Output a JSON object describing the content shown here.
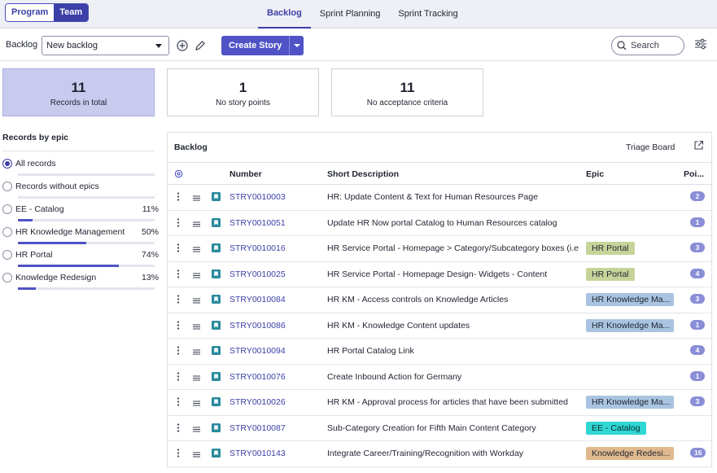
{
  "mode_toggle": {
    "program": "Program",
    "team": "Team"
  },
  "tabs": [
    {
      "label": "Backlog",
      "active": true
    },
    {
      "label": "Sprint Planning",
      "active": false
    },
    {
      "label": "Sprint Tracking",
      "active": false
    }
  ],
  "toolbar": {
    "backlog_label": "Backlog",
    "backlog_select": "New backlog",
    "create_label": "Create Story",
    "search_placeholder": "Search"
  },
  "stats": [
    {
      "value": "11",
      "label": "Records in total"
    },
    {
      "value": "1",
      "label": "No story points"
    },
    {
      "value": "11",
      "label": "No acceptance criteria"
    }
  ],
  "epic_filter": {
    "title": "Records by epic",
    "items": [
      {
        "name": "All records",
        "pct": "",
        "fill": 0,
        "checked": true
      },
      {
        "name": "Records without epics",
        "pct": "",
        "fill": 0,
        "checked": false
      },
      {
        "name": "EE - Catalog",
        "pct": "11%",
        "fill": 0.11,
        "checked": false
      },
      {
        "name": "HR Knowledge Management",
        "pct": "50%",
        "fill": 0.5,
        "checked": false
      },
      {
        "name": "HR Portal",
        "pct": "74%",
        "fill": 0.74,
        "checked": false
      },
      {
        "name": "Knowledge Redesign",
        "pct": "13%",
        "fill": 0.13,
        "checked": false
      }
    ]
  },
  "backlog": {
    "title": "Backlog",
    "triage": "Triage Board",
    "columns": {
      "number": "Number",
      "desc": "Short Description",
      "epic": "Epic",
      "points": "Poi..."
    },
    "rows": [
      {
        "number": "STRY0010003",
        "desc": "HR: Update Content & Text for Human Resources Page",
        "epic": "",
        "epic_color": "",
        "points": "2"
      },
      {
        "number": "STRY0010051",
        "desc": "Update HR Now portal Catalog to Human Resources catalog",
        "epic": "",
        "epic_color": "",
        "points": "1"
      },
      {
        "number": "STRY0010016",
        "desc": "HR Service Portal - Homepage > Category/Subcategory boxes (i.e...",
        "epic": "HR Portal",
        "epic_color": "#c6d49a",
        "points": "3"
      },
      {
        "number": "STRY0010025",
        "desc": "HR Service Portal - Homepage Design- Widgets - Content",
        "epic": "HR Portal",
        "epic_color": "#c6d49a",
        "points": "4"
      },
      {
        "number": "STRY0010084",
        "desc": "HR KM - Access controls on Knowledge Articles",
        "epic": "HR Knowledge Ma...",
        "epic_color": "#a9c4e0",
        "points": "3"
      },
      {
        "number": "STRY0010086",
        "desc": "HR KM - Knowledge Content updates",
        "epic": "HR Knowledge Ma...",
        "epic_color": "#a9c4e0",
        "points": "1"
      },
      {
        "number": "STRY0010094",
        "desc": "HR Portal Catalog Link",
        "epic": "",
        "epic_color": "",
        "points": "4"
      },
      {
        "number": "STRY0010076",
        "desc": "Create Inbound Action for Germany",
        "epic": "",
        "epic_color": "",
        "points": "1"
      },
      {
        "number": "STRY0010026",
        "desc": "HR KM - Approval process for articles that have been submitted",
        "epic": "HR Knowledge Ma...",
        "epic_color": "#a9c4e0",
        "points": "3"
      },
      {
        "number": "STRY0010087",
        "desc": "Sub-Category Creation for Fifth Main Content Category",
        "epic": "EE - Catalog",
        "epic_color": "#2fd6d2",
        "points": ""
      },
      {
        "number": "STRY0010143",
        "desc": "Integrate Career/Training/Recognition with Workday",
        "epic": "Knowledge Redesi...",
        "epic_color": "#e0b98e",
        "points": "16"
      }
    ]
  }
}
